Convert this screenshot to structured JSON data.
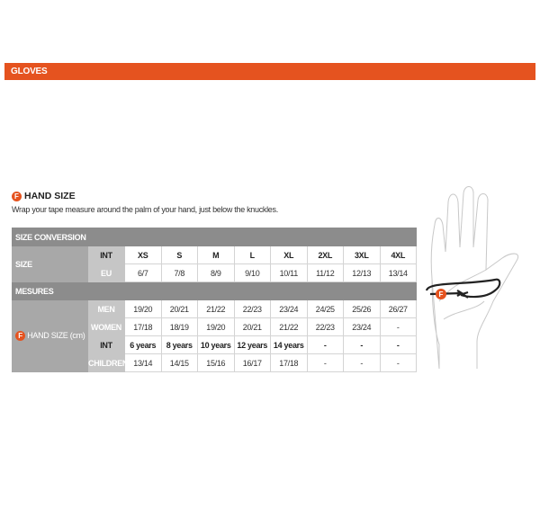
{
  "section_title": "GLOVES",
  "hand_size": {
    "title": "HAND SIZE",
    "badge": "F",
    "description": "Wrap your tape measure around the palm of your hand, just below the knuckles."
  },
  "table": {
    "size_conversion": "SIZE CONVERSION",
    "size_label": "SIZE",
    "int_label": "INT",
    "eu_label": "EU",
    "int_sizes": [
      "XS",
      "S",
      "M",
      "L",
      "XL",
      "2XL",
      "3XL",
      "4XL"
    ],
    "eu_sizes": [
      "6/7",
      "7/8",
      "8/9",
      "9/10",
      "10/11",
      "11/12",
      "12/13",
      "13/14"
    ],
    "mesures": "MESURES",
    "hand_size_label": "HAND SIZE (cm)",
    "rows": [
      {
        "label": "MEN",
        "values": [
          "19/20",
          "20/21",
          "21/22",
          "22/23",
          "23/24",
          "24/25",
          "25/26",
          "26/27"
        ]
      },
      {
        "label": "WOMEN",
        "values": [
          "17/18",
          "18/19",
          "19/20",
          "20/21",
          "21/22",
          "22/23",
          "23/24",
          "-"
        ]
      },
      {
        "label": "INT",
        "values": [
          "6 years",
          "8 years",
          "10 years",
          "12 years",
          "14 years",
          "-",
          "-",
          "-"
        ]
      },
      {
        "label": "CHILDREN",
        "values": [
          "13/14",
          "14/15",
          "15/16",
          "16/17",
          "17/18",
          "-",
          "-",
          "-"
        ]
      }
    ]
  },
  "colors": {
    "accent": "#e5531f",
    "header_gray": "#8c8c8c"
  }
}
